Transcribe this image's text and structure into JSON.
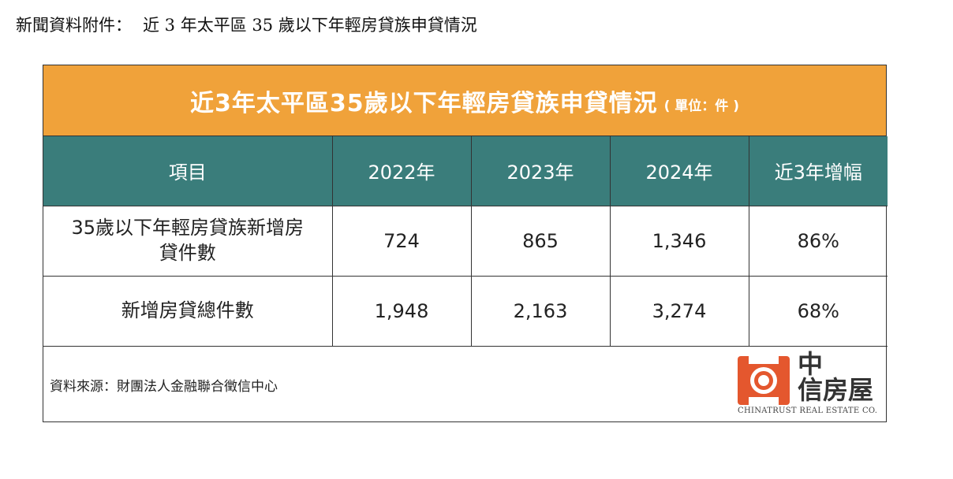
{
  "heading": {
    "prefix": "新聞資料附件：",
    "text": "近 3 年太平區 35 歲以下年輕房貸族申貸情況"
  },
  "table": {
    "title": "近3年太平區35歲以下年輕房貸族申貸情況",
    "unit": "( 單位：件 )",
    "headers": [
      "項目",
      "2022年",
      "2023年",
      "2024年",
      "近3年增幅"
    ],
    "rows": [
      {
        "label": "35歲以下年輕房貸族新增房貸件數",
        "v2022": "724",
        "v2023": "865",
        "v2024": "1,346",
        "growth": "86%"
      },
      {
        "label": "新增房貸總件數",
        "v2022": "1,948",
        "v2023": "2,163",
        "v2024": "3,274",
        "growth": "68%"
      }
    ],
    "source": "資料來源：財團法人金融聯合徵信中心"
  },
  "logo": {
    "cn_line1": "中",
    "cn_line2": "信房屋",
    "en": "CHINATRUST REAL ESTATE CO."
  },
  "colors": {
    "title_band": "#F0A23A",
    "header_row": "#3A7D7B",
    "logo": "#E4572E"
  }
}
